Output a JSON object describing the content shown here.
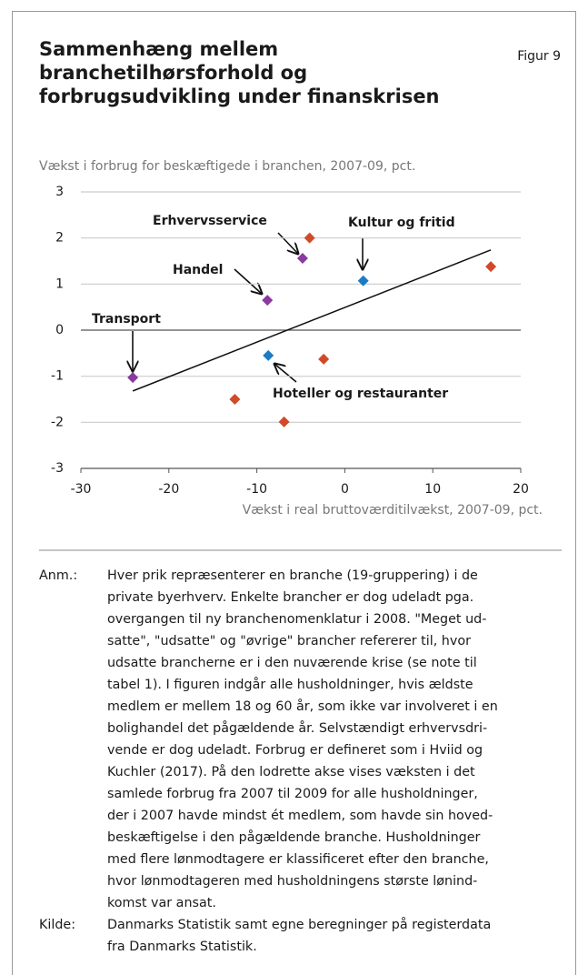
{
  "chart_data": {
    "type": "scatter",
    "title": [
      "Sammenhæng mellem",
      "branchetilhørsforhold og",
      "forbrugsudvikling under finanskrisen"
    ],
    "figure_label": "Figur 9",
    "y_label": "Vækst i forbrug for beskæftigede i branchen, 2007-09, pct.",
    "x_label": "Vækst i real bruttoværditilvækst, 2007-09, pct.",
    "xlim": [
      -30,
      20
    ],
    "xticks": [
      -30,
      -20,
      -10,
      0,
      10,
      20
    ],
    "ylim": [
      -3,
      3
    ],
    "yticks": [
      3,
      2,
      1,
      0,
      -1,
      -2,
      -3
    ],
    "grid": true,
    "series": [
      {
        "color": "#d04a2a",
        "x": [
          -4,
          16.6,
          -2.4,
          -12.5,
          -6.9
        ],
        "values": [
          2.0,
          1.38,
          -0.63,
          -1.5,
          -1.99
        ]
      },
      {
        "color": "#8a3b9f",
        "x": [
          -4.8,
          -8.8,
          -24.1
        ],
        "values": [
          1.56,
          0.65,
          -1.03
        ]
      },
      {
        "color": "#1d7bc3",
        "x": [
          2.1,
          -8.7
        ],
        "values": [
          1.07,
          -0.55
        ]
      }
    ],
    "trendline": {
      "x": [
        -24.1,
        16.6
      ],
      "values": [
        -1.32,
        1.74
      ]
    },
    "annotations": [
      "Erhvervsservice",
      "Kultur og fritid",
      "Handel",
      "Transport",
      "Hoteller og restauranter"
    ]
  },
  "notes": {
    "label": "Anm.:",
    "lines": [
      "Hver prik repræsenterer en branche (19-gruppering) i de",
      "private byerhverv. Enkelte brancher er dog udeladt pga.",
      "overgangen til ny branchenomenklatur i 2008. \"Meget ud-",
      "satte\", \"udsatte\" og \"øvrige\" brancher refererer til, hvor",
      "udsatte brancherne er i den nuværende krise (se note til",
      "tabel 1). I figuren indgår alle husholdninger, hvis ældste",
      "medlem er mellem 18 og 60 år, som ikke var involveret i en",
      "bolighandel det pågældende år. Selvstændigt erhvervsdri-",
      "vende er dog udeladt. Forbrug er defineret som i Hviid og",
      "Kuchler (2017). På den lodrette akse vises væksten i det",
      "samlede forbrug fra 2007 til 2009 for alle husholdninger,",
      "der i 2007 havde mindst ét medlem, som havde sin hoved-",
      "beskæftigelse i den pågældende branche. Husholdninger",
      "med flere lønmodtagere er klassificeret efter den branche,",
      "hvor lønmodtageren med husholdningens største lønind-",
      "komst var ansat."
    ]
  },
  "source": {
    "label": "Kilde:",
    "lines": [
      "Danmarks Statistik samt egne beregninger på registerdata",
      "fra Danmarks Statistik."
    ]
  }
}
